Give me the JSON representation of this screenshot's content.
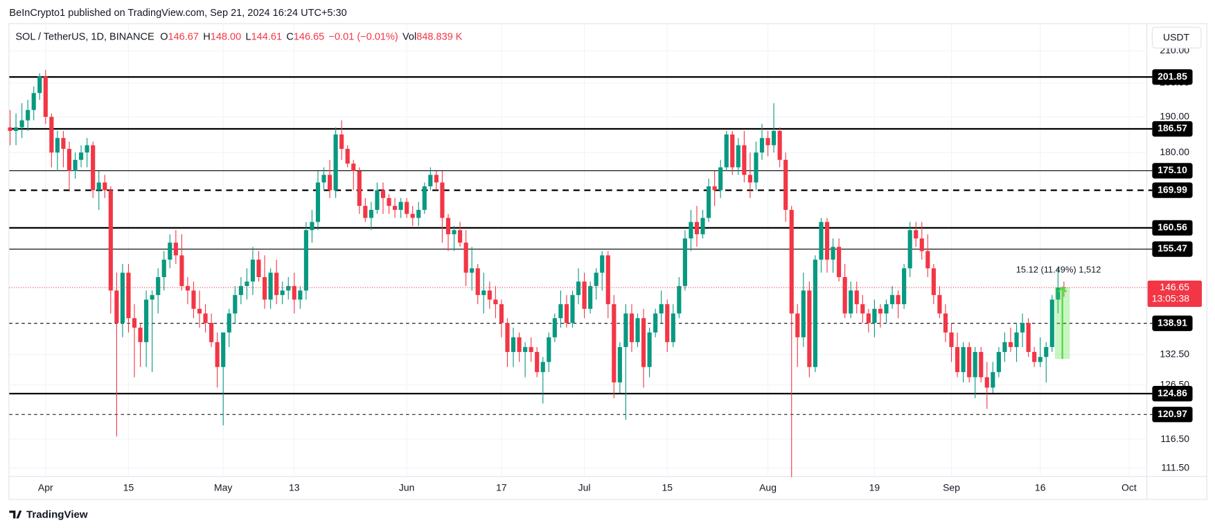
{
  "header": "BeInCrypto1 published on TradingView.com, Sep 21, 2024 16:24 UTC+5:30",
  "footer": "TradingView",
  "chart_data": {
    "type": "candlestick",
    "symbol": "SOL / TetherUS, 1D, BINANCE",
    "legend": [
      [
        "O",
        "146.67"
      ],
      [
        "H",
        "148.00"
      ],
      [
        "L",
        "144.61"
      ],
      [
        "C",
        "146.65"
      ]
    ],
    "change": "−0.01 (−0.01%)",
    "volume": [
      "Vol",
      "848.839 K"
    ],
    "currency": "USDT",
    "log": true,
    "grid": true,
    "up_color": "#089981",
    "down_color": "#f23645",
    "xlim": [
      -0.13,
      192
    ],
    "ylim": [
      110.1,
      219
    ],
    "xticks": [
      {
        "value": 6,
        "label": "Apr"
      },
      {
        "value": 20,
        "label": "15"
      },
      {
        "value": 36,
        "label": "May"
      },
      {
        "value": 48,
        "label": "13"
      },
      {
        "value": 67,
        "label": "Jun"
      },
      {
        "value": 83,
        "label": "17"
      },
      {
        "value": 97,
        "label": "Jul"
      },
      {
        "value": 111,
        "label": "15"
      },
      {
        "value": 128,
        "label": "Aug"
      },
      {
        "value": 146,
        "label": "19"
      },
      {
        "value": 159,
        "label": "Sep"
      },
      {
        "value": 174,
        "label": "16"
      },
      {
        "value": 189,
        "label": "Oct"
      }
    ],
    "yticks": [
      {
        "value": 210,
        "label": "210.00"
      },
      {
        "value": 200,
        "label": "200.00"
      },
      {
        "value": 190,
        "label": "190.00"
      },
      {
        "value": 180,
        "label": "180.00"
      },
      {
        "value": 132.5,
        "label": "132.50"
      },
      {
        "value": 126.5,
        "label": "126.50"
      },
      {
        "value": 116.5,
        "label": "116.50"
      },
      {
        "value": 111.5,
        "label": "111.50"
      }
    ],
    "levels": [
      {
        "value": 201.85,
        "label": "201.85",
        "style": "solid",
        "weight": 2
      },
      {
        "value": 186.57,
        "label": "186.57",
        "style": "solid",
        "weight": 2
      },
      {
        "value": 175.1,
        "label": "175.10",
        "style": "solid",
        "weight": 1
      },
      {
        "value": 169.99,
        "label": "169.99",
        "style": "dashed",
        "weight": 2
      },
      {
        "value": 160.56,
        "label": "160.56",
        "style": "solid",
        "weight": 2
      },
      {
        "value": 155.47,
        "label": "155.47",
        "style": "solid",
        "weight": 1
      },
      {
        "value": 138.91,
        "label": "138.91",
        "style": "dashed",
        "weight": 1
      },
      {
        "value": 124.86,
        "label": "124.86",
        "style": "solid",
        "weight": 2
      },
      {
        "value": 120.97,
        "label": "120.97",
        "style": "dashed",
        "weight": 1
      }
    ],
    "last_price": {
      "value": 146.65,
      "countdown": "13:05:38"
    },
    "measure": {
      "from": 131.6,
      "to": 146.72,
      "start": 177,
      "end": 179,
      "label": "15.12 (11.49%) 1,512",
      "color": "#4cdc3c"
    },
    "ohlc": [
      [
        187,
        192,
        182,
        186
      ],
      [
        186,
        191,
        182,
        187
      ],
      [
        187,
        194,
        184,
        189
      ],
      [
        189,
        195,
        186,
        192
      ],
      [
        192,
        199,
        189,
        197
      ],
      [
        197,
        203,
        195,
        202
      ],
      [
        202,
        204,
        188,
        190
      ],
      [
        190,
        191,
        176,
        180
      ],
      [
        180,
        186,
        175,
        184
      ],
      [
        184,
        186,
        176,
        181
      ],
      [
        181,
        183,
        170,
        175
      ],
      [
        175,
        180,
        173,
        178
      ],
      [
        178,
        182,
        176,
        180
      ],
      [
        180,
        184,
        176,
        182
      ],
      [
        182,
        183,
        168,
        170
      ],
      [
        170,
        175,
        165,
        172
      ],
      [
        172,
        174,
        168,
        170
      ],
      [
        170,
        171,
        141,
        146
      ],
      [
        146,
        150,
        117,
        139
      ],
      [
        139,
        152,
        136,
        150
      ],
      [
        150,
        152,
        137,
        140
      ],
      [
        140,
        143,
        128,
        138
      ],
      [
        138,
        139,
        130,
        135
      ],
      [
        135,
        146,
        130,
        144
      ],
      [
        144,
        146,
        129,
        145
      ],
      [
        145,
        151,
        141,
        149
      ],
      [
        149,
        155,
        146,
        153
      ],
      [
        153,
        159,
        151,
        157
      ],
      [
        157,
        160,
        152,
        154
      ],
      [
        154,
        159,
        146,
        147
      ],
      [
        147,
        149,
        143,
        146
      ],
      [
        146,
        148,
        140,
        142
      ],
      [
        142,
        146,
        138,
        141
      ],
      [
        141,
        143,
        137,
        139
      ],
      [
        139,
        141,
        134,
        135
      ],
      [
        135,
        137,
        126,
        130
      ],
      [
        130,
        137,
        119,
        137
      ],
      [
        137,
        142,
        134,
        141
      ],
      [
        141,
        147,
        139,
        145
      ],
      [
        145,
        149,
        143,
        147
      ],
      [
        147,
        151,
        144,
        148
      ],
      [
        148,
        156,
        145,
        153
      ],
      [
        153,
        155,
        148,
        149
      ],
      [
        149,
        154,
        142,
        144
      ],
      [
        144,
        151,
        142,
        150
      ],
      [
        150,
        153,
        143,
        145
      ],
      [
        145,
        148,
        143,
        146
      ],
      [
        146,
        149,
        144,
        147
      ],
      [
        147,
        150,
        141,
        144
      ],
      [
        144,
        147,
        142,
        146
      ],
      [
        146,
        162,
        144,
        160
      ],
      [
        160,
        165,
        157,
        162
      ],
      [
        162,
        175,
        160,
        172
      ],
      [
        172,
        176,
        170,
        174
      ],
      [
        174,
        178,
        168,
        170
      ],
      [
        170,
        187,
        168,
        185
      ],
      [
        185,
        189,
        178,
        181
      ],
      [
        181,
        182,
        176,
        177
      ],
      [
        177,
        178,
        170,
        175
      ],
      [
        175,
        176,
        164,
        166
      ],
      [
        166,
        168,
        162,
        163
      ],
      [
        163,
        167,
        160,
        165
      ],
      [
        165,
        172,
        164,
        170
      ],
      [
        170,
        172,
        164,
        168
      ],
      [
        168,
        169,
        164,
        166
      ],
      [
        166,
        168,
        163,
        165
      ],
      [
        165,
        168,
        163,
        167
      ],
      [
        167,
        168,
        163,
        164
      ],
      [
        164,
        166,
        161,
        163
      ],
      [
        163,
        167,
        161,
        165
      ],
      [
        165,
        172,
        164,
        171
      ],
      [
        171,
        176,
        170,
        174
      ],
      [
        174,
        175,
        170,
        172
      ],
      [
        172,
        175,
        157,
        163
      ],
      [
        163,
        164,
        155,
        159
      ],
      [
        159,
        161,
        155,
        160
      ],
      [
        160,
        162,
        156,
        157
      ],
      [
        157,
        160,
        147,
        150
      ],
      [
        150,
        156,
        146,
        151
      ],
      [
        151,
        152,
        143,
        145
      ],
      [
        145,
        150,
        141,
        146
      ],
      [
        146,
        148,
        142,
        144
      ],
      [
        144,
        147,
        140,
        143
      ],
      [
        143,
        144,
        136,
        139
      ],
      [
        139,
        140,
        130,
        133
      ],
      [
        133,
        138,
        130,
        136
      ],
      [
        136,
        137,
        131,
        133
      ],
      [
        133,
        135,
        128,
        134
      ],
      [
        134,
        136,
        131,
        133
      ],
      [
        133,
        134,
        128,
        129
      ],
      [
        129,
        132,
        123,
        131
      ],
      [
        131,
        137,
        129,
        136
      ],
      [
        136,
        141,
        135,
        140
      ],
      [
        140,
        146,
        138,
        143
      ],
      [
        143,
        145,
        138,
        139
      ],
      [
        139,
        146,
        138,
        145
      ],
      [
        145,
        151,
        143,
        148
      ],
      [
        148,
        150,
        140,
        142
      ],
      [
        142,
        148,
        141,
        147
      ],
      [
        147,
        151,
        144,
        150
      ],
      [
        150,
        155,
        146,
        154
      ],
      [
        154,
        155,
        140,
        143
      ],
      [
        143,
        145,
        124,
        127
      ],
      [
        127,
        135,
        125,
        134
      ],
      [
        134,
        143,
        120,
        141
      ],
      [
        141,
        143,
        133,
        135
      ],
      [
        135,
        141,
        134,
        140
      ],
      [
        140,
        142,
        126,
        130
      ],
      [
        130,
        138,
        128,
        137
      ],
      [
        137,
        142,
        136,
        141
      ],
      [
        141,
        146,
        139,
        143
      ],
      [
        143,
        144,
        133,
        135
      ],
      [
        135,
        143,
        134,
        141
      ],
      [
        141,
        149,
        140,
        147
      ],
      [
        147,
        160,
        146,
        158
      ],
      [
        158,
        165,
        155,
        162
      ],
      [
        162,
        166,
        156,
        159
      ],
      [
        159,
        165,
        158,
        163
      ],
      [
        163,
        173,
        162,
        171
      ],
      [
        171,
        175,
        166,
        170
      ],
      [
        170,
        178,
        168,
        176
      ],
      [
        176,
        186,
        175,
        185
      ],
      [
        185,
        186,
        174,
        176
      ],
      [
        176,
        184,
        174,
        182
      ],
      [
        182,
        186,
        172,
        174
      ],
      [
        174,
        180,
        168,
        172
      ],
      [
        172,
        183,
        170,
        180
      ],
      [
        180,
        188,
        178,
        184
      ],
      [
        184,
        186,
        179,
        182
      ],
      [
        182,
        194,
        180,
        186
      ],
      [
        186,
        187,
        176,
        178
      ],
      [
        178,
        180,
        162,
        165
      ],
      [
        165,
        166,
        110,
        141
      ],
      [
        141,
        143,
        130,
        136
      ],
      [
        136,
        150,
        134,
        146
      ],
      [
        146,
        148,
        128,
        130
      ],
      [
        130,
        154,
        129,
        153
      ],
      [
        153,
        163,
        150,
        162
      ],
      [
        162,
        163,
        150,
        153
      ],
      [
        153,
        158,
        150,
        156
      ],
      [
        156,
        158,
        148,
        149
      ],
      [
        149,
        152,
        140,
        141
      ],
      [
        141,
        148,
        140,
        146
      ],
      [
        146,
        148,
        141,
        143
      ],
      [
        143,
        145,
        139,
        141
      ],
      [
        141,
        142,
        137,
        139
      ],
      [
        139,
        144,
        136,
        142
      ],
      [
        142,
        143,
        138,
        141
      ],
      [
        141,
        144,
        139,
        143
      ],
      [
        143,
        147,
        142,
        145
      ],
      [
        145,
        146,
        140,
        143
      ],
      [
        143,
        152,
        142,
        151
      ],
      [
        151,
        162,
        149,
        160
      ],
      [
        160,
        162,
        156,
        158
      ],
      [
        158,
        162,
        153,
        155
      ],
      [
        155,
        159,
        149,
        151
      ],
      [
        151,
        152,
        143,
        145
      ],
      [
        145,
        147,
        140,
        141
      ],
      [
        141,
        143,
        135,
        137
      ],
      [
        137,
        139,
        131,
        134
      ],
      [
        134,
        137,
        128,
        129
      ],
      [
        129,
        135,
        127,
        134
      ],
      [
        134,
        135,
        127,
        128
      ],
      [
        128,
        134,
        124,
        133
      ],
      [
        133,
        134,
        127,
        128
      ],
      [
        128,
        131,
        122,
        126
      ],
      [
        126,
        131,
        125,
        129
      ],
      [
        129,
        134,
        128,
        133
      ],
      [
        133,
        137,
        131,
        135
      ],
      [
        135,
        138,
        133,
        134
      ],
      [
        134,
        139,
        131,
        137
      ],
      [
        137,
        141,
        134,
        139
      ],
      [
        139,
        140,
        132,
        133
      ],
      [
        133,
        134,
        130,
        131
      ],
      [
        131,
        136,
        130,
        132
      ],
      [
        132,
        135,
        127,
        134
      ],
      [
        134,
        145,
        133,
        144
      ],
      [
        144,
        151,
        141,
        146.67
      ],
      [
        146.67,
        148,
        144.61,
        146.65
      ]
    ]
  }
}
